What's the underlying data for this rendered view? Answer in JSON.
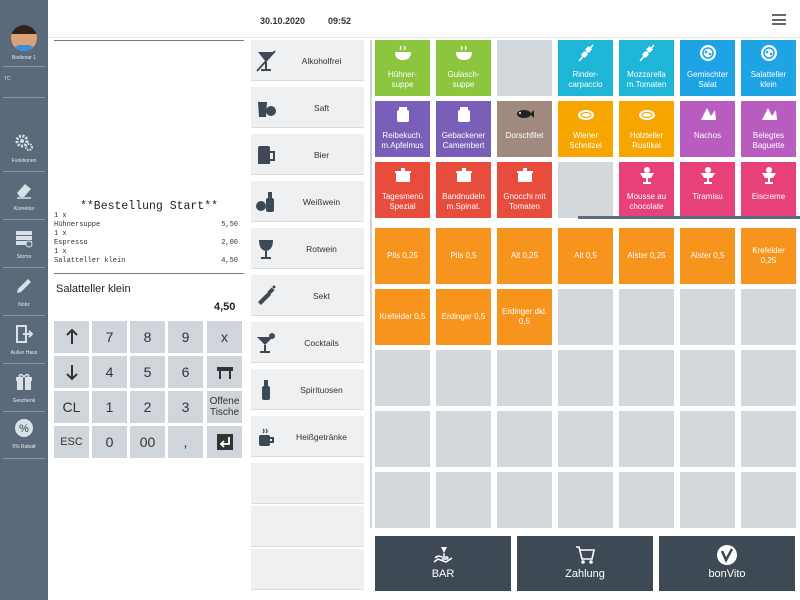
{
  "header": {
    "date": "30.10.2020",
    "time": "09:52"
  },
  "sidebar": {
    "user": "Bedienar 1",
    "small": "TC",
    "items": [
      {
        "label": "Funktionen",
        "icon": "gears-icon"
      },
      {
        "label": "Korrektur",
        "icon": "eraser-icon"
      },
      {
        "label": "Storno",
        "icon": "storno-icon"
      },
      {
        "label": "Notiz",
        "icon": "pencil-icon"
      },
      {
        "label": "Außer Haus",
        "icon": "exit-icon"
      },
      {
        "label": "Geschenk",
        "icon": "gift-icon"
      },
      {
        "label": "5% Rabatt",
        "icon": "percent-icon"
      }
    ]
  },
  "receipt": {
    "title": "**Bestellung Start**",
    "lines": [
      {
        "text": "1 x",
        "price": ""
      },
      {
        "text": "Hühnersuppe",
        "price": "5,50"
      },
      {
        "text": "1 x",
        "price": ""
      },
      {
        "text": "Espresso",
        "price": "2,00"
      },
      {
        "text": "1 x",
        "price": ""
      },
      {
        "text": "Salatteller klein",
        "price": "4,50"
      }
    ],
    "selected_name": "Salatteller klein",
    "selected_price": "4,50"
  },
  "numpad": {
    "keys": [
      "7",
      "8",
      "9",
      "x",
      "4",
      "5",
      "6",
      "1",
      "2",
      "3",
      "Offene Tische",
      "0",
      "00",
      ",",
      "CL",
      "ESC"
    ]
  },
  "categories": [
    "Alkoholfrei",
    "Saft",
    "Bier",
    "Weißwein",
    "Rotwein",
    "Sekt",
    "Cocktails",
    "Spirituosen",
    "Heißgetränke",
    "",
    "",
    ""
  ],
  "food": [
    {
      "label": "Hühner-\nsuppe",
      "color": "#8cc63f",
      "icon": "bowl-icon"
    },
    {
      "label": "Gulasch-\nsuppe",
      "color": "#8cc63f",
      "icon": "bowl-icon"
    },
    {
      "label": "",
      "color": "",
      "icon": ""
    },
    {
      "label": "Rinder-\ncarpaccio",
      "color": "#1fb5d6",
      "icon": "skewer-icon"
    },
    {
      "label": "Mozzarella\nm.Tomaten",
      "color": "#1fb5d6",
      "icon": "skewer-icon"
    },
    {
      "label": "Gemischter\nSalat",
      "color": "#1ea3e4",
      "icon": "salad-icon"
    },
    {
      "label": "Salatteller\nklein",
      "color": "#1ea3e4",
      "icon": "salad-icon"
    },
    {
      "label": "Reibekuch.\nm.Apfelmus",
      "color": "#7a5fb8",
      "icon": "jar-icon"
    },
    {
      "label": "Gebackener\nCamembert",
      "color": "#7a5fb8",
      "icon": "jar-icon"
    },
    {
      "label": "Dorschfilet",
      "color": "#a08a80",
      "icon": "fish-icon"
    },
    {
      "label": "Wiener\nSchnitzel",
      "color": "#f7a600",
      "icon": "schnitzel-icon"
    },
    {
      "label": "Holzteller\nRustikal",
      "color": "#f7a600",
      "icon": "schnitzel-icon"
    },
    {
      "label": "Nachos",
      "color": "#b85cbf",
      "icon": "nachos-icon"
    },
    {
      "label": "Belegtes\nBaguette",
      "color": "#b85cbf",
      "icon": "nachos-icon"
    },
    {
      "label": "Tagesmenü\nSpezial",
      "color": "#e74c3c",
      "icon": "pot-icon"
    },
    {
      "label": "Bandnudeln\nm.Spinat.",
      "color": "#e74c3c",
      "icon": "pot-icon"
    },
    {
      "label": "Gnocchi mit\nTomaten",
      "color": "#e74c3c",
      "icon": "pot-icon"
    },
    {
      "label": "",
      "color": "",
      "icon": ""
    },
    {
      "label": "Mousse au\nchocolate",
      "color": "#e8417a",
      "icon": "dessert-icon"
    },
    {
      "label": "Tiramisu",
      "color": "#e8417a",
      "icon": "dessert-icon"
    },
    {
      "label": "Eiscreme",
      "color": "#e8417a",
      "icon": "dessert-icon"
    }
  ],
  "drinks": [
    "Pils 0,25",
    "Pils 0,5",
    "Alt 0,25",
    "Alt 0,5",
    "Alster 0,25",
    "Alster 0,5",
    "Krefelder\n0,25",
    "Krefelder 0,5",
    "Erdinger 0,5",
    "Erdinger dkl.\n0,5"
  ],
  "actions": [
    {
      "label": "BAR",
      "icon": "bar-icon"
    },
    {
      "label": "Zahlung",
      "icon": "cart-icon"
    },
    {
      "label": "bonVito",
      "icon": "bonvito-icon"
    }
  ],
  "colors": {
    "empty_tile": "#d3d8dc",
    "drink_tile": "#f7941d",
    "sidebar": "#5a6a7a",
    "action": "#3d4a56"
  }
}
